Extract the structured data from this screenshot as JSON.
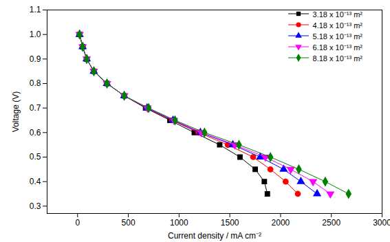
{
  "chart_data": {
    "type": "line",
    "x_label": "Current density / mA cm⁻²",
    "y_label": "Voltage (V)",
    "xlim": [
      -300,
      3000
    ],
    "xticks": [
      0,
      500,
      1000,
      1500,
      2000,
      2500,
      3000
    ],
    "ylim": [
      0.27,
      1.1
    ],
    "yticks": [
      0.3,
      0.4,
      0.5,
      0.6,
      0.7,
      0.8,
      0.9,
      {
        "value": 1.0,
        "label": "1.0"
      },
      1.1
    ],
    "grid": false,
    "legend": "top-right",
    "series": [
      {
        "name": "3.18 x 10⁻¹³ m²",
        "color": "#000000",
        "marker": "square",
        "x": [
          20,
          50,
          90,
          160,
          290,
          460,
          670,
          910,
          1150,
          1400,
          1600,
          1750,
          1840,
          1870
        ],
        "values": [
          1.0,
          0.95,
          0.9,
          0.85,
          0.8,
          0.75,
          0.7,
          0.65,
          0.6,
          0.55,
          0.5,
          0.45,
          0.4,
          0.35
        ]
      },
      {
        "name": "4.18 x 10⁻¹³ m²",
        "color": "#ff0000",
        "marker": "circle",
        "x": [
          20,
          50,
          90,
          160,
          290,
          460,
          680,
          930,
          1190,
          1480,
          1730,
          1900,
          2050,
          2170
        ],
        "values": [
          1.0,
          0.95,
          0.9,
          0.85,
          0.8,
          0.75,
          0.7,
          0.65,
          0.6,
          0.55,
          0.5,
          0.45,
          0.4,
          0.35
        ]
      },
      {
        "name": "5.18 x 10⁻¹³ m²",
        "color": "#0000ff",
        "marker": "triangle",
        "x": [
          20,
          50,
          90,
          160,
          290,
          460,
          685,
          940,
          1210,
          1530,
          1800,
          2030,
          2200,
          2360
        ],
        "values": [
          1.0,
          0.95,
          0.9,
          0.85,
          0.8,
          0.75,
          0.7,
          0.65,
          0.6,
          0.55,
          0.5,
          0.45,
          0.4,
          0.35
        ]
      },
      {
        "name": "6.18 x 10⁻¹³ m²",
        "color": "#ff00ff",
        "marker": "triangle-down",
        "x": [
          20,
          50,
          90,
          160,
          290,
          460,
          690,
          950,
          1220,
          1550,
          1850,
          2100,
          2320,
          2490
        ],
        "values": [
          1.0,
          0.95,
          0.9,
          0.85,
          0.8,
          0.75,
          0.7,
          0.65,
          0.6,
          0.55,
          0.5,
          0.45,
          0.4,
          0.35
        ]
      },
      {
        "name": "8.18 x 10⁻¹³ m²",
        "color": "#008000",
        "marker": "diamond",
        "x": [
          20,
          50,
          90,
          160,
          290,
          460,
          700,
          960,
          1250,
          1590,
          1900,
          2180,
          2440,
          2670
        ],
        "values": [
          1.0,
          0.95,
          0.9,
          0.85,
          0.8,
          0.75,
          0.7,
          0.65,
          0.6,
          0.55,
          0.5,
          0.45,
          0.4,
          0.35
        ]
      }
    ]
  }
}
